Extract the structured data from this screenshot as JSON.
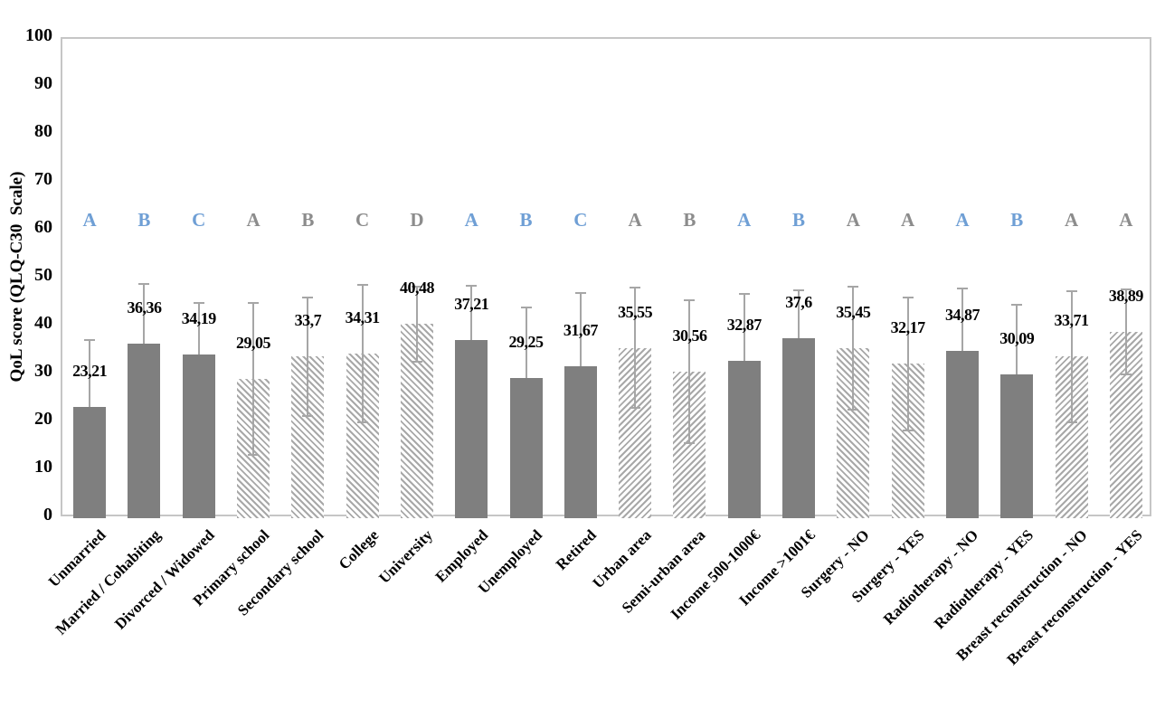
{
  "chart_data": {
    "type": "bar",
    "title": "",
    "xlabel": "",
    "ylabel": "QoL score (QLQ-C30  Scale)",
    "ylim": [
      0,
      100
    ],
    "yticks": [
      0,
      10,
      20,
      30,
      40,
      50,
      60,
      70,
      80,
      90,
      100
    ],
    "grid": false,
    "legend": "none",
    "decimal_separator": ",",
    "categories": [
      "Unmarried",
      "Married / Cohabiting",
      "Divorced / Widowed",
      "Primary school",
      "Secondary school",
      "College",
      "University",
      "Employed",
      "Unemployed",
      "Retired",
      "Urban area",
      "Semi-urban area",
      "Income 500-1000€",
      "Income >1001€",
      "Surgery - NO",
      "Surgery - YES",
      "Radiotherapy - NO",
      "Radiotherapy - YES",
      "Breast reconstruction - NO",
      "Breast reconstruction - YES"
    ],
    "values": [
      23.21,
      36.36,
      34.19,
      29.05,
      33.7,
      34.31,
      40.48,
      37.21,
      29.25,
      31.67,
      35.55,
      30.56,
      32.87,
      37.6,
      35.45,
      32.17,
      34.87,
      30.09,
      33.71,
      38.89
    ],
    "value_labels": [
      "23,21",
      "36,36",
      "34,19",
      "29,05",
      "33,7",
      "34,31",
      "40,48",
      "37,21",
      "29,25",
      "31,67",
      "35,55",
      "30,56",
      "32,87",
      "37,6",
      "35,45",
      "32,17",
      "34,87",
      "30,09",
      "33,71",
      "38,89"
    ],
    "errors": [
      14.0,
      12.6,
      10.8,
      15.9,
      12.3,
      14.3,
      7.9,
      11.3,
      14.8,
      15.3,
      12.5,
      14.9,
      13.9,
      9.9,
      12.9,
      13.8,
      13.0,
      14.4,
      13.7,
      8.8
    ],
    "letters": [
      "A",
      "B",
      "C",
      "A",
      "B",
      "C",
      "D",
      "A",
      "B",
      "C",
      "A",
      "B",
      "A",
      "B",
      "A",
      "A",
      "A",
      "B",
      "A",
      "A"
    ],
    "letter_colors": [
      "blue",
      "blue",
      "blue",
      "gray",
      "gray",
      "gray",
      "gray",
      "blue",
      "blue",
      "blue",
      "gray",
      "gray",
      "blue",
      "blue",
      "gray",
      "gray",
      "blue",
      "blue",
      "gray",
      "gray"
    ],
    "bar_styles": [
      "solid",
      "solid",
      "solid",
      "hatch-down",
      "hatch-down",
      "hatch-down",
      "hatch-down",
      "solid",
      "solid",
      "solid",
      "hatch-up",
      "hatch-up",
      "solid",
      "solid",
      "hatch-down",
      "hatch-down",
      "solid",
      "solid",
      "hatch-up",
      "hatch-up"
    ],
    "letter_row_value": 62,
    "colors": {
      "solid_bar": "#7f7f7f",
      "hatch_stripe": "#a8a8a8",
      "error_bar": "#a6a6a6",
      "letter_blue": "#6f9fd5",
      "letter_gray": "#8c8c8c",
      "axis_line": "#c6c6c6",
      "text": "#000000"
    }
  }
}
